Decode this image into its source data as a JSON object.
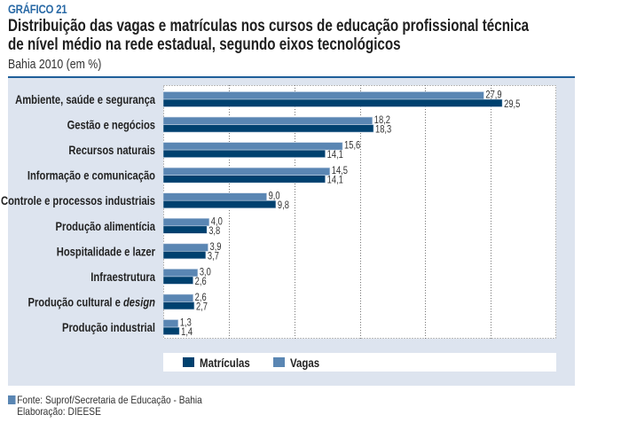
{
  "header": {
    "tag": "GRÁFICO 21",
    "title": "Distribuição das vagas e matrículas nos cursos de educação profissional técnica de nível médio na rede estadual, segundo eixos tecnológicos",
    "subtitle": "Bahia 2010 (em %)"
  },
  "colors": {
    "matriculas": "#00416f",
    "vagas": "#5a86b3",
    "panel": "#dde4ef",
    "rule": "#1f5f99",
    "tag": "#2a6aa6"
  },
  "chart_data": {
    "type": "bar",
    "orientation": "horizontal",
    "title": "Distribuição das vagas e matrículas nos cursos de educação profissional técnica de nível médio na rede estadual, segundo eixos tecnológicos",
    "subtitle": "Bahia 2010 (em %)",
    "xlabel": "",
    "ylabel": "",
    "xlim": [
      0,
      34.2
    ],
    "grid": true,
    "grid_divisions": 6,
    "legend_position": "bottom",
    "categories": [
      "Ambiente, saúde e segurança",
      "Gestão e negócios",
      "Recursos naturais",
      "Informação e comunicação",
      "Controle e processos industriais",
      "Produção alimentícia",
      "Hospitalidade e lazer",
      "Infraestrutura",
      "Produção cultural e design",
      "Produção industrial"
    ],
    "category_labels": [
      {
        "text": "Ambiente, saúde e segurança"
      },
      {
        "text": "Gestão e negócios"
      },
      {
        "text": "Recursos naturais"
      },
      {
        "text": "Informação e comunicação"
      },
      {
        "text": "Controle e processos industriais"
      },
      {
        "text": "Produção alimentícia"
      },
      {
        "text": "Hospitalidade e lazer"
      },
      {
        "text": "Infraestrutura"
      },
      {
        "text": "Produção cultural e ",
        "italic": "design"
      },
      {
        "text": "Produção industrial"
      }
    ],
    "series": [
      {
        "name": "Vagas",
        "values": [
          27.9,
          18.2,
          15.6,
          14.5,
          9.0,
          4.0,
          3.9,
          3.0,
          2.6,
          1.3
        ],
        "labels": [
          "27,9",
          "18,2",
          "15,6",
          "14,5",
          "9,0",
          "4,0",
          "3,9",
          "3,0",
          "2,6",
          "1,3"
        ]
      },
      {
        "name": "Matrículas",
        "values": [
          29.5,
          18.3,
          14.1,
          14.1,
          9.8,
          3.8,
          3.7,
          2.6,
          2.7,
          1.4
        ],
        "labels": [
          "29,5",
          "18,3",
          "14,1",
          "14,1",
          "9,8",
          "3,8",
          "3,7",
          "2,6",
          "2,7",
          "1,4"
        ]
      }
    ]
  },
  "legend": {
    "items": [
      {
        "label": "Matrículas"
      },
      {
        "label": "Vagas"
      }
    ]
  },
  "footer": {
    "source": "Fonte: Suprof/Secretaria de Educação - Bahia",
    "elaboration": "Elaboração: DIEESE"
  }
}
